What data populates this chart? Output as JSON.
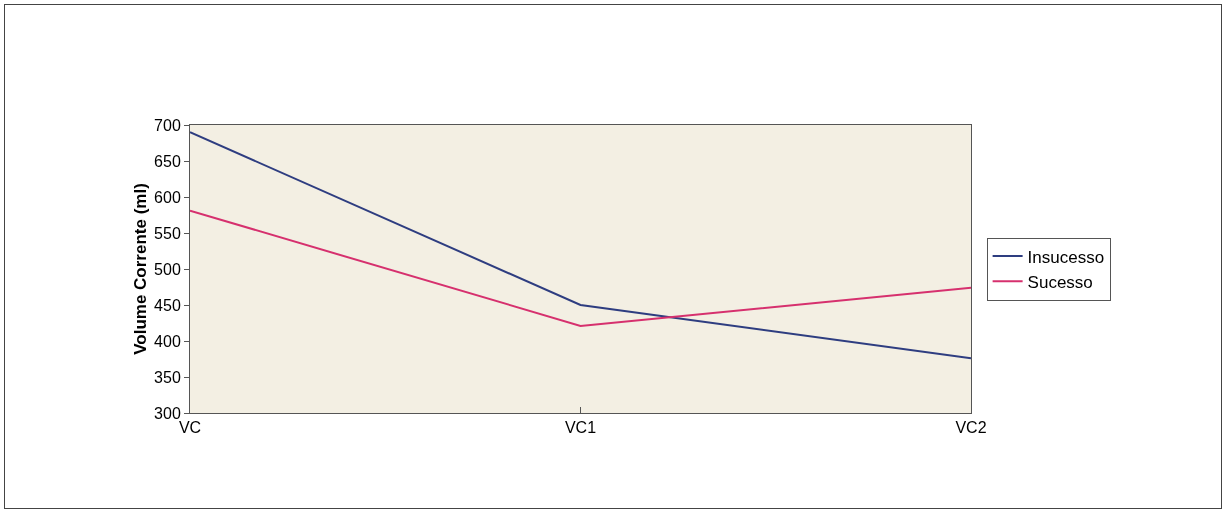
{
  "chart_data": {
    "type": "line",
    "ylabel": "Volume Corrente (ml)",
    "categories": [
      "VC",
      "VC1",
      "VC2"
    ],
    "series": [
      {
        "name": "Insucesso",
        "color": "#2e3d80",
        "values": [
          690,
          450,
          376
        ]
      },
      {
        "name": "Sucesso",
        "color": "#d6306e",
        "values": [
          581,
          421,
          474
        ]
      }
    ],
    "ylim": [
      300,
      700
    ],
    "yticks": [
      300,
      350,
      400,
      450,
      500,
      550,
      600,
      650,
      700
    ],
    "grid": false,
    "legend": "right",
    "marker": "none",
    "line_style": "solid"
  }
}
